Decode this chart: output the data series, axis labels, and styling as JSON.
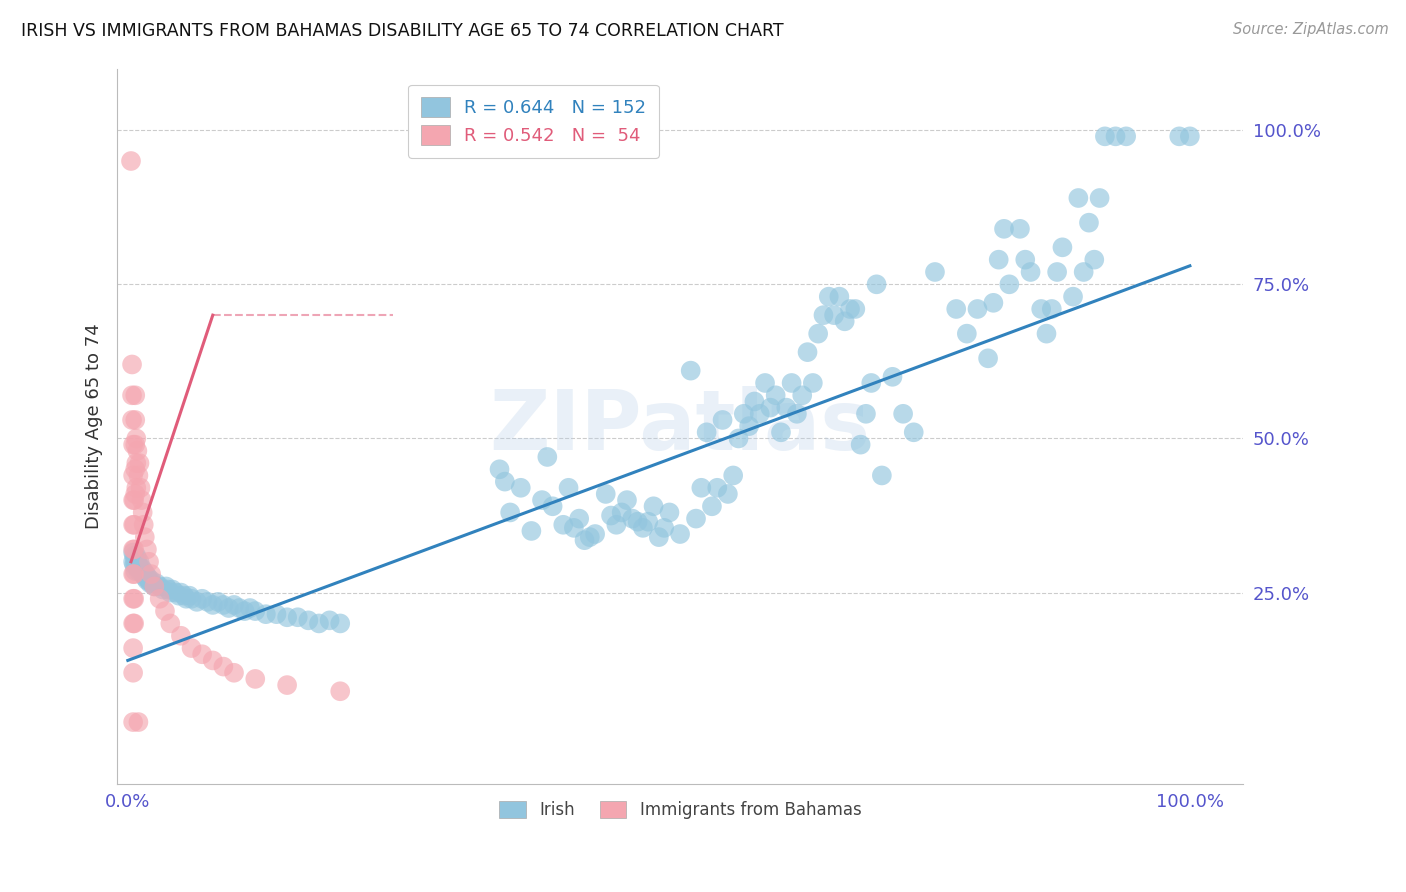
{
  "title": "IRISH VS IMMIGRANTS FROM BAHAMAS DISABILITY AGE 65 TO 74 CORRELATION CHART",
  "source": "Source: ZipAtlas.com",
  "ylabel": "Disability Age 65 to 74",
  "legend_irish": "Irish",
  "legend_bahamas": "Immigrants from Bahamas",
  "r_irish": "0.644",
  "n_irish": "152",
  "r_bahamas": "0.542",
  "n_bahamas": "54",
  "blue_color": "#92c5de",
  "blue_line_color": "#3182bd",
  "pink_color": "#f4a6b0",
  "pink_line_color": "#e05c7a",
  "watermark": "ZIPatlas",
  "background_color": "#ffffff",
  "grid_color": "#cccccc",
  "label_color": "#5555cc",
  "blue_scatter": [
    [
      0.005,
      0.3
    ],
    [
      0.005,
      0.315
    ],
    [
      0.006,
      0.295
    ],
    [
      0.006,
      0.31
    ],
    [
      0.007,
      0.3
    ],
    [
      0.007,
      0.285
    ],
    [
      0.008,
      0.295
    ],
    [
      0.008,
      0.31
    ],
    [
      0.009,
      0.305
    ],
    [
      0.009,
      0.29
    ],
    [
      0.01,
      0.295
    ],
    [
      0.01,
      0.285
    ],
    [
      0.011,
      0.3
    ],
    [
      0.012,
      0.285
    ],
    [
      0.013,
      0.29
    ],
    [
      0.014,
      0.28
    ],
    [
      0.015,
      0.285
    ],
    [
      0.016,
      0.275
    ],
    [
      0.017,
      0.28
    ],
    [
      0.018,
      0.27
    ],
    [
      0.019,
      0.275
    ],
    [
      0.02,
      0.27
    ],
    [
      0.021,
      0.265
    ],
    [
      0.022,
      0.27
    ],
    [
      0.023,
      0.265
    ],
    [
      0.025,
      0.26
    ],
    [
      0.027,
      0.265
    ],
    [
      0.03,
      0.26
    ],
    [
      0.033,
      0.255
    ],
    [
      0.036,
      0.26
    ],
    [
      0.038,
      0.255
    ],
    [
      0.04,
      0.25
    ],
    [
      0.042,
      0.255
    ],
    [
      0.045,
      0.25
    ],
    [
      0.048,
      0.245
    ],
    [
      0.05,
      0.25
    ],
    [
      0.053,
      0.245
    ],
    [
      0.055,
      0.24
    ],
    [
      0.058,
      0.245
    ],
    [
      0.06,
      0.24
    ],
    [
      0.065,
      0.235
    ],
    [
      0.07,
      0.24
    ],
    [
      0.075,
      0.235
    ],
    [
      0.08,
      0.23
    ],
    [
      0.085,
      0.235
    ],
    [
      0.09,
      0.23
    ],
    [
      0.095,
      0.225
    ],
    [
      0.1,
      0.23
    ],
    [
      0.105,
      0.225
    ],
    [
      0.11,
      0.22
    ],
    [
      0.115,
      0.225
    ],
    [
      0.12,
      0.22
    ],
    [
      0.13,
      0.215
    ],
    [
      0.14,
      0.215
    ],
    [
      0.15,
      0.21
    ],
    [
      0.16,
      0.21
    ],
    [
      0.17,
      0.205
    ],
    [
      0.18,
      0.2
    ],
    [
      0.19,
      0.205
    ],
    [
      0.2,
      0.2
    ],
    [
      0.35,
      0.45
    ],
    [
      0.355,
      0.43
    ],
    [
      0.36,
      0.38
    ],
    [
      0.37,
      0.42
    ],
    [
      0.38,
      0.35
    ],
    [
      0.39,
      0.4
    ],
    [
      0.395,
      0.47
    ],
    [
      0.4,
      0.39
    ],
    [
      0.41,
      0.36
    ],
    [
      0.415,
      0.42
    ],
    [
      0.42,
      0.355
    ],
    [
      0.425,
      0.37
    ],
    [
      0.43,
      0.335
    ],
    [
      0.435,
      0.34
    ],
    [
      0.44,
      0.345
    ],
    [
      0.45,
      0.41
    ],
    [
      0.455,
      0.375
    ],
    [
      0.46,
      0.36
    ],
    [
      0.465,
      0.38
    ],
    [
      0.47,
      0.4
    ],
    [
      0.475,
      0.37
    ],
    [
      0.48,
      0.365
    ],
    [
      0.485,
      0.355
    ],
    [
      0.49,
      0.365
    ],
    [
      0.495,
      0.39
    ],
    [
      0.5,
      0.34
    ],
    [
      0.505,
      0.355
    ],
    [
      0.51,
      0.38
    ],
    [
      0.52,
      0.345
    ],
    [
      0.53,
      0.61
    ],
    [
      0.535,
      0.37
    ],
    [
      0.54,
      0.42
    ],
    [
      0.545,
      0.51
    ],
    [
      0.55,
      0.39
    ],
    [
      0.555,
      0.42
    ],
    [
      0.56,
      0.53
    ],
    [
      0.565,
      0.41
    ],
    [
      0.57,
      0.44
    ],
    [
      0.575,
      0.5
    ],
    [
      0.58,
      0.54
    ],
    [
      0.585,
      0.52
    ],
    [
      0.59,
      0.56
    ],
    [
      0.595,
      0.54
    ],
    [
      0.6,
      0.59
    ],
    [
      0.605,
      0.55
    ],
    [
      0.61,
      0.57
    ],
    [
      0.615,
      0.51
    ],
    [
      0.62,
      0.55
    ],
    [
      0.625,
      0.59
    ],
    [
      0.63,
      0.54
    ],
    [
      0.635,
      0.57
    ],
    [
      0.64,
      0.64
    ],
    [
      0.645,
      0.59
    ],
    [
      0.65,
      0.67
    ],
    [
      0.655,
      0.7
    ],
    [
      0.66,
      0.73
    ],
    [
      0.665,
      0.7
    ],
    [
      0.67,
      0.73
    ],
    [
      0.675,
      0.69
    ],
    [
      0.68,
      0.71
    ],
    [
      0.685,
      0.71
    ],
    [
      0.69,
      0.49
    ],
    [
      0.695,
      0.54
    ],
    [
      0.7,
      0.59
    ],
    [
      0.705,
      0.75
    ],
    [
      0.71,
      0.44
    ],
    [
      0.72,
      0.6
    ],
    [
      0.73,
      0.54
    ],
    [
      0.74,
      0.51
    ],
    [
      0.76,
      0.77
    ],
    [
      0.78,
      0.71
    ],
    [
      0.79,
      0.67
    ],
    [
      0.8,
      0.71
    ],
    [
      0.81,
      0.63
    ],
    [
      0.815,
      0.72
    ],
    [
      0.82,
      0.79
    ],
    [
      0.825,
      0.84
    ],
    [
      0.83,
      0.75
    ],
    [
      0.84,
      0.84
    ],
    [
      0.845,
      0.79
    ],
    [
      0.85,
      0.77
    ],
    [
      0.86,
      0.71
    ],
    [
      0.865,
      0.67
    ],
    [
      0.87,
      0.71
    ],
    [
      0.875,
      0.77
    ],
    [
      0.88,
      0.81
    ],
    [
      0.89,
      0.73
    ],
    [
      0.895,
      0.89
    ],
    [
      0.9,
      0.77
    ],
    [
      0.905,
      0.85
    ],
    [
      0.91,
      0.79
    ],
    [
      0.915,
      0.89
    ],
    [
      0.92,
      0.99
    ],
    [
      0.93,
      0.99
    ],
    [
      0.94,
      0.99
    ],
    [
      0.99,
      0.99
    ],
    [
      1.0,
      0.99
    ]
  ],
  "pink_scatter": [
    [
      0.003,
      0.95
    ],
    [
      0.004,
      0.62
    ],
    [
      0.004,
      0.57
    ],
    [
      0.004,
      0.53
    ],
    [
      0.005,
      0.49
    ],
    [
      0.005,
      0.44
    ],
    [
      0.005,
      0.4
    ],
    [
      0.005,
      0.36
    ],
    [
      0.005,
      0.32
    ],
    [
      0.005,
      0.28
    ],
    [
      0.005,
      0.24
    ],
    [
      0.005,
      0.2
    ],
    [
      0.005,
      0.16
    ],
    [
      0.005,
      0.12
    ],
    [
      0.006,
      0.4
    ],
    [
      0.006,
      0.36
    ],
    [
      0.006,
      0.32
    ],
    [
      0.006,
      0.28
    ],
    [
      0.006,
      0.24
    ],
    [
      0.006,
      0.2
    ],
    [
      0.007,
      0.57
    ],
    [
      0.007,
      0.53
    ],
    [
      0.007,
      0.49
    ],
    [
      0.007,
      0.45
    ],
    [
      0.007,
      0.41
    ],
    [
      0.008,
      0.5
    ],
    [
      0.008,
      0.46
    ],
    [
      0.008,
      0.42
    ],
    [
      0.009,
      0.48
    ],
    [
      0.01,
      0.44
    ],
    [
      0.011,
      0.46
    ],
    [
      0.012,
      0.42
    ],
    [
      0.013,
      0.4
    ],
    [
      0.014,
      0.38
    ],
    [
      0.015,
      0.36
    ],
    [
      0.016,
      0.34
    ],
    [
      0.018,
      0.32
    ],
    [
      0.02,
      0.3
    ],
    [
      0.022,
      0.28
    ],
    [
      0.025,
      0.26
    ],
    [
      0.03,
      0.24
    ],
    [
      0.035,
      0.22
    ],
    [
      0.04,
      0.2
    ],
    [
      0.05,
      0.18
    ],
    [
      0.06,
      0.16
    ],
    [
      0.07,
      0.15
    ],
    [
      0.08,
      0.14
    ],
    [
      0.09,
      0.13
    ],
    [
      0.1,
      0.12
    ],
    [
      0.12,
      0.11
    ],
    [
      0.15,
      0.1
    ],
    [
      0.2,
      0.09
    ],
    [
      0.005,
      0.04
    ],
    [
      0.01,
      0.04
    ]
  ],
  "blue_line": {
    "x0": 0.0,
    "y0": 0.14,
    "x1": 1.0,
    "y1": 0.78
  },
  "pink_line": {
    "x0": 0.003,
    "y0": 0.3,
    "x1": 0.08,
    "y1": 0.7
  },
  "pink_dashed_line": {
    "x0": 0.08,
    "y0": 0.7,
    "x1": 0.25,
    "y1": 0.7
  },
  "xlim": [
    -0.01,
    1.05
  ],
  "ylim": [
    -0.06,
    1.1
  ],
  "xticks": [
    0.0,
    1.0
  ],
  "yticks": [
    0.25,
    0.5,
    0.75,
    1.0
  ],
  "xticklabels": [
    "0.0%",
    "100.0%"
  ],
  "yticklabels": [
    "25.0%",
    "50.0%",
    "75.0%",
    "100.0%"
  ]
}
